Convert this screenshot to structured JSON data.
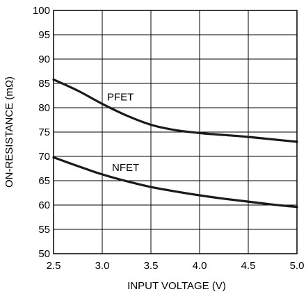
{
  "chart_data": {
    "type": "line",
    "title": "",
    "xlabel": "INPUT VOLTAGE (V)",
    "ylabel": "ON-RESISTANCE (mΩ)",
    "xlim": [
      2.5,
      5.0
    ],
    "ylim": [
      50,
      100
    ],
    "x_ticks": [
      "2.5",
      "3.0",
      "3.5",
      "4.0",
      "4.5",
      "5.0"
    ],
    "y_ticks": [
      "50",
      "55",
      "60",
      "65",
      "70",
      "75",
      "80",
      "85",
      "90",
      "95",
      "100"
    ],
    "grid": true,
    "legend": "none",
    "series": [
      {
        "name": "PFET",
        "color": "#1a1a1a",
        "x": [
          2.5,
          2.75,
          3.0,
          3.25,
          3.5,
          3.75,
          4.0,
          4.25,
          4.5,
          4.75,
          5.0
        ],
        "values": [
          85.8,
          83.5,
          80.8,
          78.4,
          76.5,
          75.4,
          74.8,
          74.4,
          74.0,
          73.5,
          73.0
        ]
      },
      {
        "name": "NFET",
        "color": "#1a1a1a",
        "x": [
          2.5,
          2.75,
          3.0,
          3.25,
          3.5,
          3.75,
          4.0,
          4.25,
          4.5,
          4.75,
          5.0
        ],
        "values": [
          69.8,
          68.0,
          66.3,
          64.9,
          63.7,
          62.8,
          62.0,
          61.3,
          60.7,
          60.1,
          59.6
        ]
      }
    ],
    "annotations": [
      {
        "text": "PFET",
        "x": 3.05,
        "y": 81.5
      },
      {
        "text": "NFET",
        "x": 3.1,
        "y": 67.0
      }
    ]
  }
}
